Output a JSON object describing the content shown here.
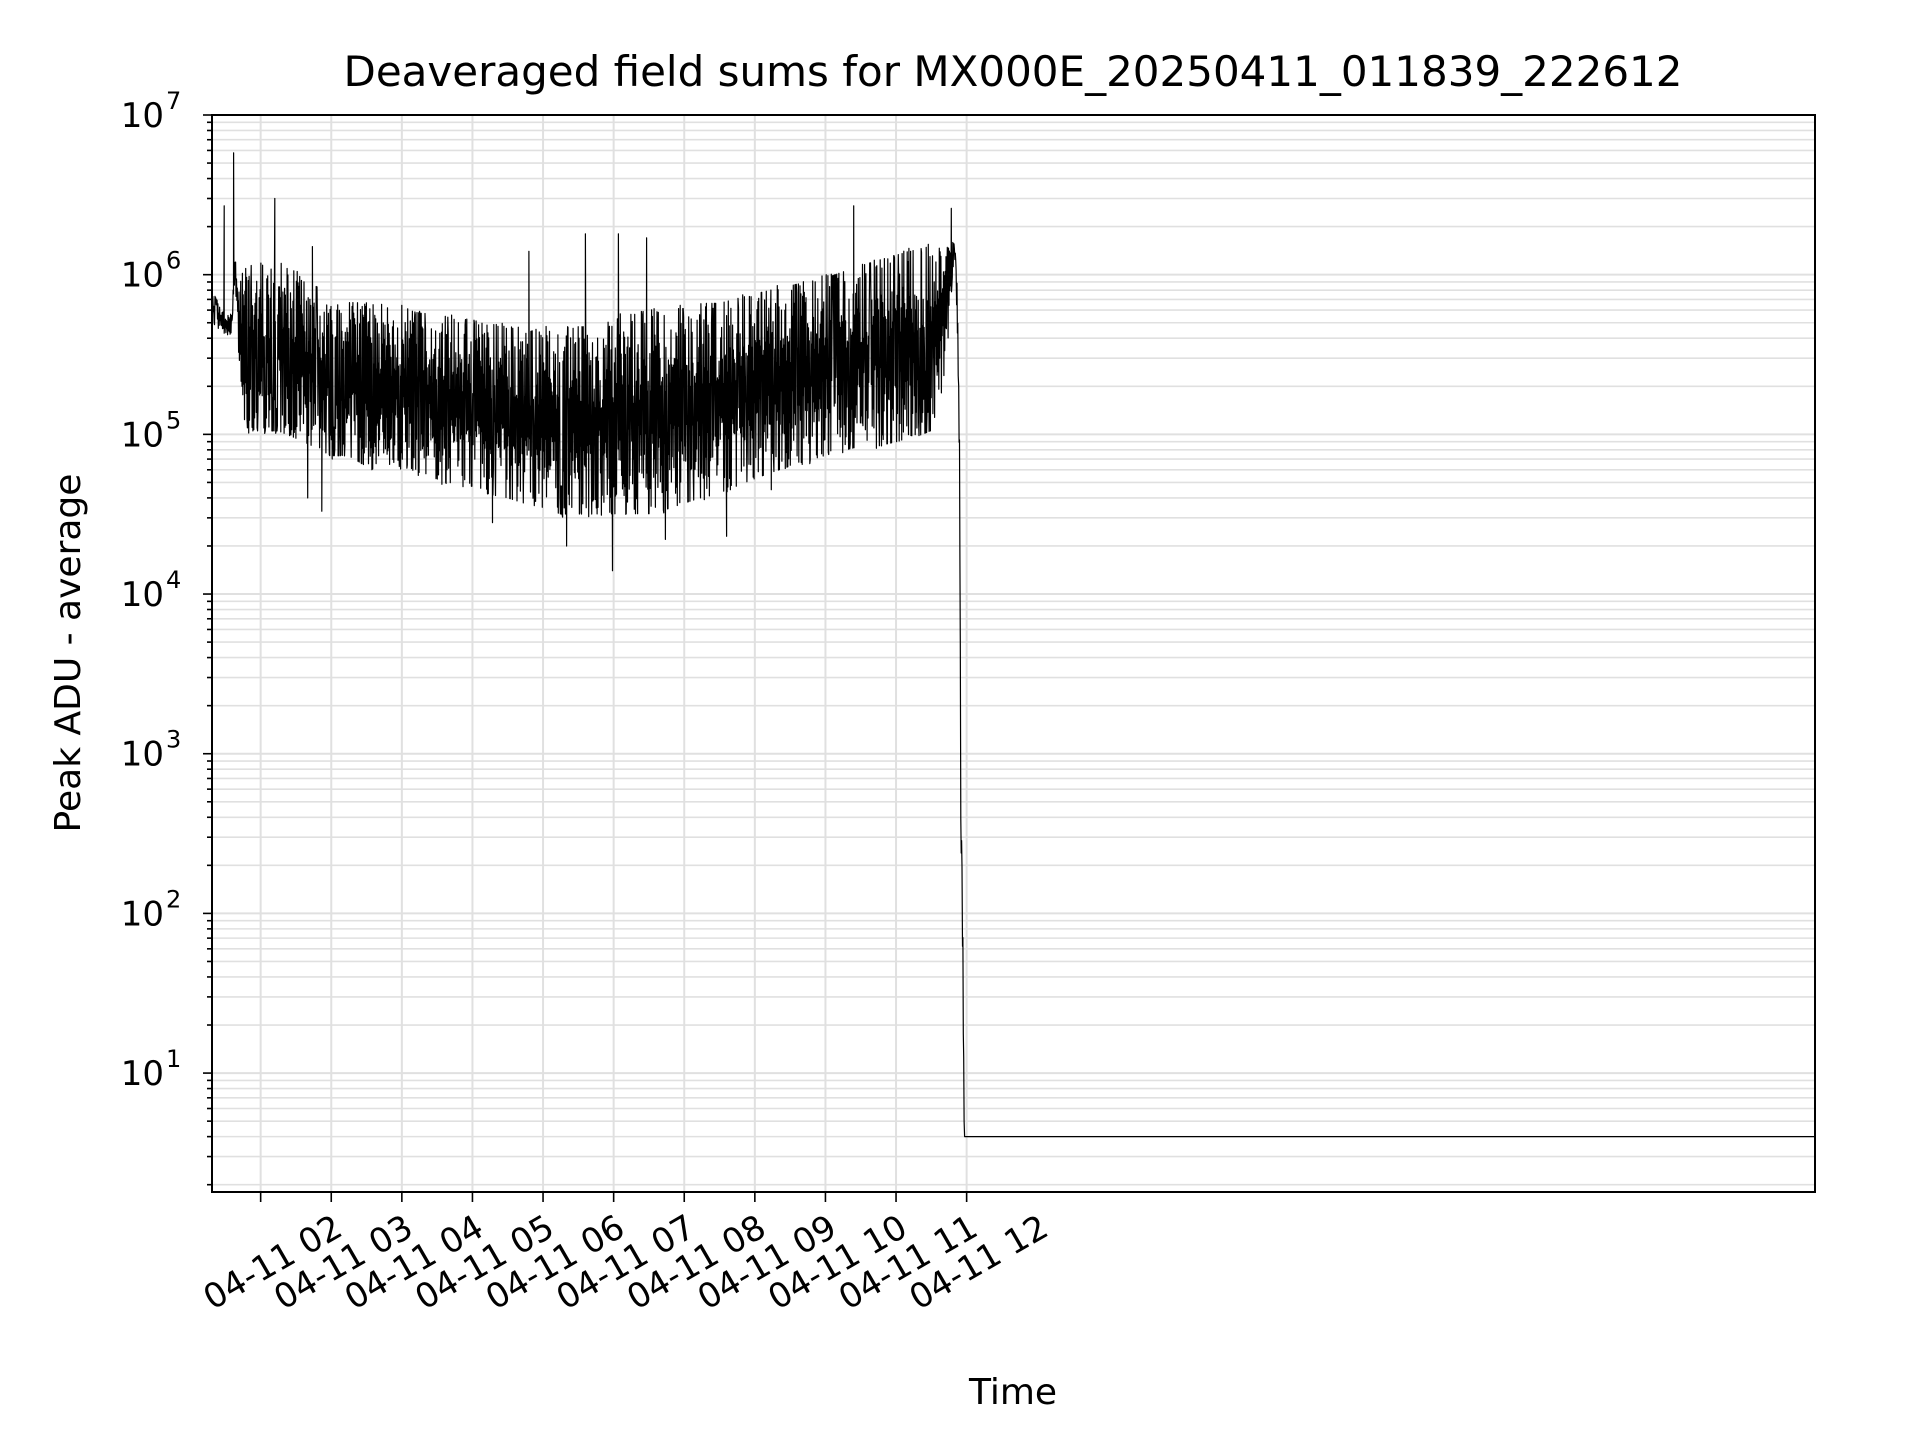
{
  "chart_data": {
    "type": "line",
    "title": "Deaveraged field sums for MX000E_20250411_011839_222612",
    "xlabel": "Time",
    "ylabel": "Peak ADU - average",
    "yscale": "log",
    "ylim": [
      1.8,
      10000000
    ],
    "y_tick_base": "10",
    "y_ticks": [
      {
        "value": 10,
        "exp": "1"
      },
      {
        "value": 100,
        "exp": "2"
      },
      {
        "value": 1000,
        "exp": "3"
      },
      {
        "value": 10000,
        "exp": "4"
      },
      {
        "value": 100000,
        "exp": "5"
      },
      {
        "value": 1000000,
        "exp": "6"
      },
      {
        "value": 10000000,
        "exp": "7"
      }
    ],
    "xlim": [
      "2025-04-11 01:18:39",
      "2025-04-12 00:01:00"
    ],
    "x_ticks": [
      {
        "t": "2025-04-11 02:00",
        "label": "04-11 02"
      },
      {
        "t": "2025-04-11 03:00",
        "label": "04-11 03"
      },
      {
        "t": "2025-04-11 04:00",
        "label": "04-11 04"
      },
      {
        "t": "2025-04-11 05:00",
        "label": "04-11 05"
      },
      {
        "t": "2025-04-11 06:00",
        "label": "04-11 06"
      },
      {
        "t": "2025-04-11 07:00",
        "label": "04-11 07"
      },
      {
        "t": "2025-04-11 08:00",
        "label": "04-11 08"
      },
      {
        "t": "2025-04-11 09:00",
        "label": "04-11 09"
      },
      {
        "t": "2025-04-11 10:00",
        "label": "04-11 10"
      },
      {
        "t": "2025-04-11 11:00",
        "label": "04-11 11"
      },
      {
        "t": "2025-04-11 12:00",
        "label": "04-11 12"
      }
    ],
    "grid": true,
    "line_color": "#000000",
    "grid_color": "#e0e0e0",
    "series": [
      {
        "x": [
          "2025-04-11 01:18:39",
          "2025-04-11 01:25:00",
          "2025-04-11 01:30:00",
          "2025-04-11 01:35:00",
          "2025-04-11 01:38:00",
          "2025-04-11 01:42:00",
          "2025-04-11 01:45:00",
          "2025-04-11 01:50:00",
          "2025-04-11 02:00:00",
          "2025-04-11 02:15:00",
          "2025-04-11 02:30:00",
          "2025-04-11 02:45:00",
          "2025-04-11 03:00:00",
          "2025-04-11 03:15:00",
          "2025-04-11 03:30:00",
          "2025-04-11 03:45:00",
          "2025-04-11 04:00:00",
          "2025-04-11 04:15:00",
          "2025-04-11 04:30:00",
          "2025-04-11 04:45:00",
          "2025-04-11 05:00:00",
          "2025-04-11 05:15:00",
          "2025-04-11 05:30:00",
          "2025-04-11 05:45:00",
          "2025-04-11 06:00:00",
          "2025-04-11 06:15:00",
          "2025-04-11 06:30:00",
          "2025-04-11 06:45:00",
          "2025-04-11 07:00:00",
          "2025-04-11 07:15:00",
          "2025-04-11 07:30:00",
          "2025-04-11 07:45:00",
          "2025-04-11 08:00:00",
          "2025-04-11 08:15:00",
          "2025-04-11 08:30:00",
          "2025-04-11 08:45:00",
          "2025-04-11 09:00:00",
          "2025-04-11 09:15:00",
          "2025-04-11 09:30:00",
          "2025-04-11 09:45:00",
          "2025-04-11 10:00:00",
          "2025-04-11 10:15:00",
          "2025-04-11 10:30:00",
          "2025-04-11 10:45:00",
          "2025-04-11 11:00:00",
          "2025-04-11 11:15:00",
          "2025-04-11 11:30:00",
          "2025-04-11 11:40:00",
          "2025-04-11 11:45:00",
          "2025-04-11 11:48:00",
          "2025-04-11 11:50:00",
          "2025-04-11 11:52:00",
          "2025-04-11 11:54:00",
          "2025-04-11 11:55:00",
          "2025-04-11 11:56:00",
          "2025-04-11 11:57:00",
          "2025-04-11 11:58:00",
          "2025-04-11 11:59:00",
          "2025-04-12 00:00:00",
          "2025-04-12 00:01:00"
        ],
        "upper": [
          800000,
          650000,
          550000,
          600000,
          1300000,
          900000,
          1100000,
          1200000,
          1200000,
          1200000,
          1100000,
          900000,
          800000,
          700000,
          700000,
          650000,
          650000,
          600000,
          600000,
          550000,
          550000,
          500000,
          500000,
          450000,
          500000,
          500000,
          500000,
          500000,
          550000,
          600000,
          600000,
          650000,
          650000,
          700000,
          700000,
          750000,
          800000,
          850000,
          900000,
          950000,
          1000000,
          1100000,
          1200000,
          1300000,
          1400000,
          1500000,
          1600000,
          1600000,
          1500000,
          1700000,
          1500000,
          900000,
          100000,
          2000,
          300,
          60,
          4,
          4,
          4,
          4
        ],
        "lower": [
          500000,
          450000,
          420000,
          420000,
          900000,
          250000,
          120000,
          100000,
          100000,
          100000,
          90000,
          80000,
          70000,
          70000,
          60000,
          60000,
          60000,
          55000,
          50000,
          45000,
          45000,
          40000,
          38000,
          35000,
          33000,
          30000,
          30000,
          30000,
          30000,
          30000,
          30000,
          32000,
          35000,
          38000,
          40000,
          45000,
          50000,
          55000,
          60000,
          65000,
          70000,
          75000,
          80000,
          80000,
          85000,
          90000,
          100000,
          200000,
          400000,
          1000000,
          1200000,
          500000,
          50000,
          300,
          150,
          20,
          4,
          4,
          4,
          4
        ],
        "spikes": [
          {
            "t": "2025-04-11 01:29:00",
            "value": 2700000
          },
          {
            "t": "2025-04-11 01:37:00",
            "value": 5800000
          },
          {
            "t": "2025-04-11 02:12:00",
            "value": 3000000
          },
          {
            "t": "2025-04-11 02:44:00",
            "value": 1500000
          },
          {
            "t": "2025-04-11 05:48:00",
            "value": 1400000
          },
          {
            "t": "2025-04-11 06:36:00",
            "value": 1800000
          },
          {
            "t": "2025-04-11 07:04:00",
            "value": 1800000
          },
          {
            "t": "2025-04-11 07:28:00",
            "value": 1700000
          },
          {
            "t": "2025-04-11 10:24:00",
            "value": 2700000
          },
          {
            "t": "2025-04-11 11:47:00",
            "value": 2600000
          }
        ],
        "dips": [
          {
            "t": "2025-04-11 02:40:00",
            "value": 40000
          },
          {
            "t": "2025-04-11 02:52:00",
            "value": 33000
          },
          {
            "t": "2025-04-11 05:17:00",
            "value": 28000
          },
          {
            "t": "2025-04-11 06:20:00",
            "value": 20000
          },
          {
            "t": "2025-04-11 06:59:00",
            "value": 14000
          },
          {
            "t": "2025-04-11 07:44:00",
            "value": 22000
          },
          {
            "t": "2025-04-11 08:36:00",
            "value": 23000
          },
          {
            "t": "2025-04-11 09:14:00",
            "value": 45000
          }
        ]
      }
    ]
  }
}
